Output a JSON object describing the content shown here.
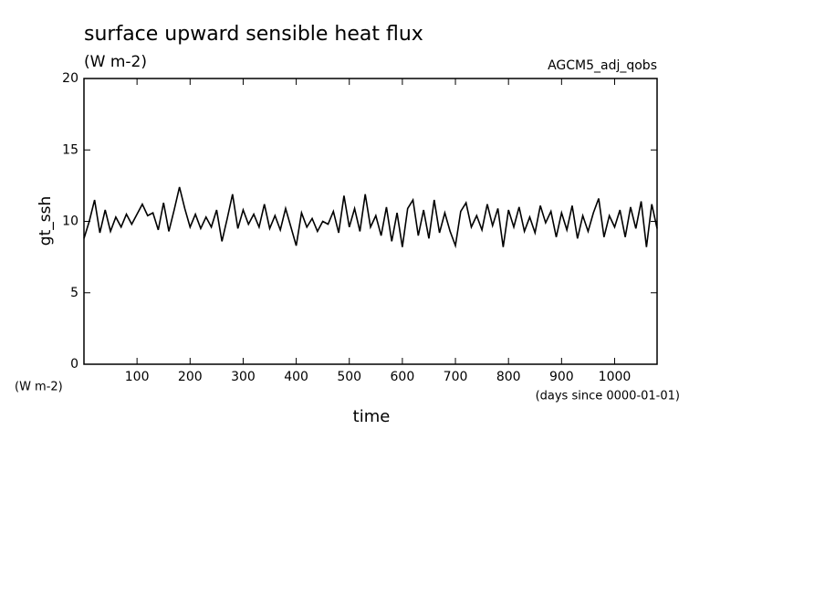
{
  "chart_data": {
    "type": "line",
    "title": "surface upward sensible heat flux",
    "subtitle": "(W m-2)",
    "annotation": "AGCM5_adj_qobs",
    "y_label": "gt_ssh",
    "y_unit": "(W m-2)",
    "x_label": "time",
    "x_unit": "(days since 0000-01-01)",
    "xlim": [
      0,
      1080
    ],
    "xticks": [
      100,
      200,
      300,
      400,
      500,
      600,
      700,
      800,
      900,
      1000
    ],
    "ylim": [
      0,
      20
    ],
    "yticks": [
      0,
      5,
      10,
      15,
      20
    ],
    "color": "#000000",
    "x": [
      0,
      10,
      20,
      30,
      40,
      50,
      60,
      70,
      80,
      90,
      100,
      110,
      120,
      130,
      140,
      150,
      160,
      170,
      180,
      190,
      200,
      210,
      220,
      230,
      240,
      250,
      260,
      270,
      280,
      290,
      300,
      310,
      320,
      330,
      340,
      350,
      360,
      370,
      380,
      390,
      400,
      410,
      420,
      430,
      440,
      450,
      460,
      470,
      480,
      490,
      500,
      510,
      520,
      530,
      540,
      550,
      560,
      570,
      580,
      590,
      600,
      610,
      620,
      630,
      640,
      650,
      660,
      670,
      680,
      690,
      700,
      710,
      720,
      730,
      740,
      750,
      760,
      770,
      780,
      790,
      800,
      810,
      820,
      830,
      840,
      850,
      860,
      870,
      880,
      890,
      900,
      910,
      920,
      930,
      940,
      950,
      960,
      970,
      980,
      990,
      1000,
      1010,
      1020,
      1030,
      1040,
      1050,
      1060,
      1070,
      1080
    ],
    "values": [
      8.8,
      10,
      11.5,
      9.2,
      10.8,
      9.3,
      10.3,
      9.6,
      10.5,
      9.8,
      10.5,
      11.2,
      10.4,
      10.6,
      9.4,
      11.3,
      9.3,
      10.8,
      12.4,
      10.9,
      9.6,
      10.5,
      9.5,
      10.3,
      9.6,
      10.8,
      8.6,
      10.2,
      11.9,
      9.5,
      10.8,
      9.8,
      10.5,
      9.6,
      11.2,
      9.5,
      10.4,
      9.4,
      10.9,
      9.6,
      8.3,
      10.6,
      9.6,
      10.2,
      9.3,
      10.0,
      9.8,
      10.7,
      9.2,
      11.8,
      9.6,
      10.9,
      9.3,
      11.9,
      9.6,
      10.4,
      9.0,
      11.0,
      8.6,
      10.6,
      8.2,
      10.9,
      11.5,
      9.0,
      10.8,
      8.8,
      11.5,
      9.2,
      10.6,
      9.3,
      8.3,
      10.7,
      11.3,
      9.6,
      10.4,
      9.4,
      11.2,
      9.7,
      10.9,
      8.2,
      10.8,
      9.6,
      11.0,
      9.3,
      10.3,
      9.2,
      11.1,
      9.9,
      10.7,
      8.9,
      10.6,
      9.4,
      11.1,
      8.8,
      10.4,
      9.3,
      10.6,
      11.6,
      8.9,
      10.4,
      9.6,
      10.8,
      8.9,
      11.0,
      9.5,
      11.4,
      8.2,
      11.2,
      9.5
    ]
  }
}
